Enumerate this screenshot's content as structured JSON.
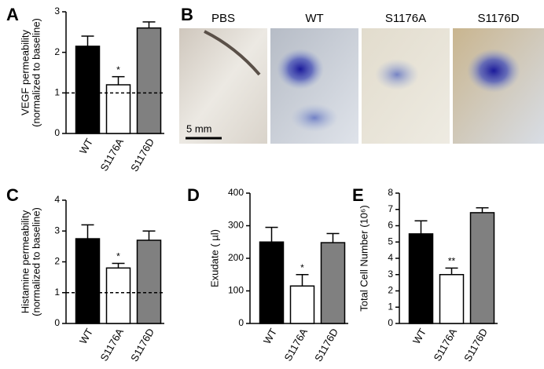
{
  "chart_data": [
    {
      "type": "bar",
      "panel": "A",
      "ylabel": [
        "VEGF permeability",
        "(normalized to baseline)"
      ],
      "categories": [
        "WT",
        "S1176A",
        "S1176D"
      ],
      "values": [
        2.15,
        1.2,
        2.6
      ],
      "errors": [
        0.25,
        0.2,
        0.15
      ],
      "colors": [
        "#000000",
        "#ffffff",
        "#808080"
      ],
      "significance": [
        null,
        "*",
        null
      ],
      "baseline": 1,
      "ylim": [
        0,
        3
      ],
      "yticks": [
        0,
        1,
        2,
        3
      ]
    },
    {
      "type": "bar",
      "panel": "C",
      "ylabel": [
        "Histamine permeability",
        "(normalized to baseline)"
      ],
      "categories": [
        "WT",
        "S1176A",
        "S1176D"
      ],
      "values": [
        2.75,
        1.8,
        2.7
      ],
      "errors": [
        0.45,
        0.15,
        0.3
      ],
      "colors": [
        "#000000",
        "#ffffff",
        "#808080"
      ],
      "significance": [
        null,
        "*",
        null
      ],
      "baseline": 1,
      "ylim": [
        0,
        4
      ],
      "yticks": [
        0,
        1,
        2,
        3,
        4
      ]
    },
    {
      "type": "bar",
      "panel": "D",
      "ylabel": [
        "Exudate ( µl)"
      ],
      "categories": [
        "WT",
        "S1176A",
        "S1176D"
      ],
      "values": [
        250,
        115,
        248
      ],
      "errors": [
        45,
        35,
        28
      ],
      "colors": [
        "#000000",
        "#ffffff",
        "#808080"
      ],
      "significance": [
        null,
        "*",
        null
      ],
      "ylim": [
        0,
        400
      ],
      "yticks": [
        0,
        100,
        200,
        300,
        400
      ]
    },
    {
      "type": "bar",
      "panel": "E",
      "ylabel": [
        "Total Cell Number (10⁶)"
      ],
      "categories": [
        "WT",
        "S1176A",
        "S1176D"
      ],
      "values": [
        5.5,
        3.0,
        6.8
      ],
      "errors": [
        0.8,
        0.4,
        0.3
      ],
      "colors": [
        "#000000",
        "#ffffff",
        "#808080"
      ],
      "significance": [
        null,
        "**",
        null
      ],
      "ylim": [
        0,
        8
      ],
      "yticks": [
        0,
        1,
        2,
        3,
        4,
        5,
        6,
        7,
        8
      ]
    }
  ],
  "images": {
    "panel": "B",
    "labels": [
      "PBS",
      "WT",
      "S1176A",
      "S1176D"
    ],
    "scale_bar": "5 mm"
  }
}
